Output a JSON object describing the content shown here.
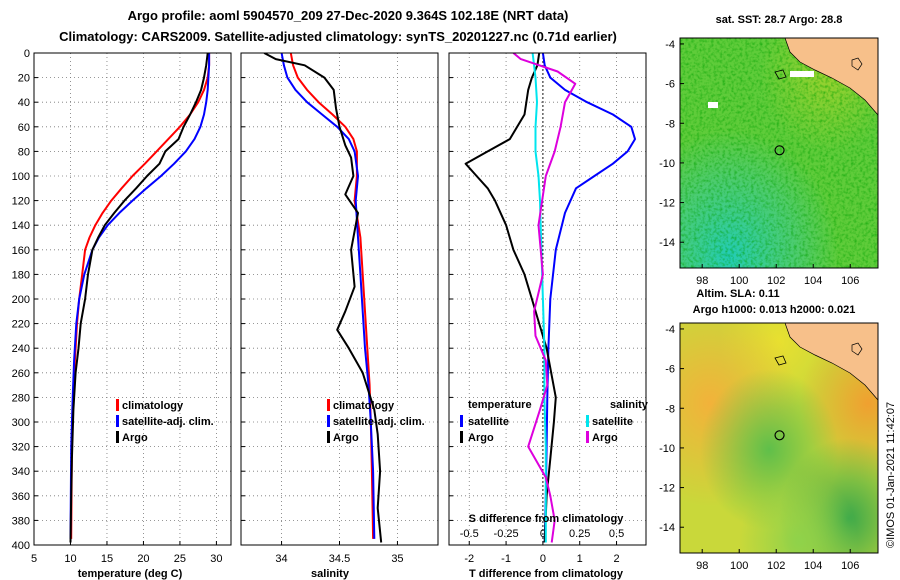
{
  "header": {
    "line1": "Argo profile: aoml 5904570_209 27-Dec-2020 9.364S 102.18E (NRT data)",
    "line2": "Climatology: CARS2009. Satellite-adjusted climatology: synTS_20201227.nc (0.71d earlier)"
  },
  "colors": {
    "climatology": "#ff0000",
    "satellite": "#0000ff",
    "argo": "#000000",
    "sat_s": "#00e5ee",
    "argo_s": "#dd00dd",
    "land": "#f7c08a"
  },
  "chart_data": [
    {
      "type": "line",
      "id": "temperature",
      "xlabel": "temperature (deg C)",
      "ylabel": "depth",
      "xlim": [
        5,
        32
      ],
      "ylim": [
        0,
        400
      ],
      "xticks": [
        "5",
        "10",
        "15",
        "20",
        "25",
        "30"
      ],
      "xtick_values": [
        5,
        10,
        15,
        20,
        25,
        30
      ],
      "yticks": [
        "0",
        "20",
        "40",
        "60",
        "80",
        "100",
        "120",
        "140",
        "160",
        "180",
        "200",
        "220",
        "240",
        "260",
        "280",
        "300",
        "320",
        "340",
        "360",
        "380",
        "400"
      ],
      "ytick_values": [
        0,
        20,
        40,
        60,
        80,
        100,
        120,
        140,
        160,
        180,
        200,
        220,
        240,
        260,
        280,
        300,
        320,
        340,
        360,
        380,
        400
      ],
      "legend": [
        "climatology",
        "satellite-adj. clim.",
        "Argo"
      ],
      "series": [
        {
          "name": "climatology",
          "color": "#ff0000",
          "x": [
            29,
            29,
            28.8,
            28.3,
            27.5,
            26.4,
            25,
            23.4,
            21.8,
            20.2,
            18.5,
            17,
            15.6,
            14.4,
            13.4,
            12.6,
            12,
            11.6,
            11.2,
            10.9,
            10.6,
            10.4,
            10.2,
            10.1
          ],
          "y": [
            0,
            10,
            20,
            30,
            40,
            50,
            60,
            70,
            80,
            90,
            100,
            110,
            120,
            130,
            140,
            150,
            160,
            180,
            200,
            220,
            250,
            280,
            320,
            395
          ]
        },
        {
          "name": "satellite-adj. clim.",
          "color": "#0000ff",
          "x": [
            29,
            29,
            28.9,
            28.8,
            28.6,
            28.3,
            27.8,
            27,
            25.8,
            24.2,
            22.4,
            20.4,
            18.5,
            16.7,
            15.1,
            13.9,
            13,
            11.9,
            11.2,
            10.8,
            10.5,
            10.3,
            10.1,
            10
          ],
          "y": [
            0,
            10,
            20,
            30,
            40,
            50,
            60,
            70,
            80,
            90,
            100,
            110,
            120,
            130,
            140,
            150,
            160,
            180,
            200,
            220,
            250,
            280,
            320,
            395
          ]
        },
        {
          "name": "Argo",
          "color": "#000000",
          "x": [
            28.8,
            28.6,
            28.3,
            27.9,
            27.2,
            26.4,
            25.5,
            24.8,
            23,
            22.2,
            20.5,
            19,
            17.4,
            16,
            14.7,
            13.8,
            13,
            12.4,
            12,
            11.4,
            11.1,
            10.7,
            10.4,
            10.2,
            10.1,
            10
          ],
          "y": [
            0,
            10,
            20,
            30,
            40,
            50,
            60,
            70,
            80,
            90,
            100,
            110,
            120,
            130,
            140,
            150,
            160,
            180,
            200,
            220,
            240,
            260,
            290,
            330,
            360,
            398
          ]
        }
      ]
    },
    {
      "type": "line",
      "id": "salinity",
      "xlabel": "salinity",
      "xlim": [
        33.65,
        35.35
      ],
      "ylim": [
        0,
        400
      ],
      "xticks": [
        "34",
        "34.5",
        "35"
      ],
      "xtick_values": [
        34,
        34.5,
        35
      ],
      "legend": [
        "climatology",
        "satellite-adj. clim.",
        "Argo"
      ],
      "series": [
        {
          "name": "climatology",
          "color": "#ff0000",
          "x": [
            34.08,
            34.1,
            34.14,
            34.22,
            34.32,
            34.44,
            34.55,
            34.62,
            34.65,
            34.65,
            34.63,
            34.68,
            34.7,
            34.72,
            34.74,
            34.76,
            34.77,
            34.78,
            34.79
          ],
          "y": [
            0,
            10,
            20,
            30,
            40,
            50,
            60,
            70,
            80,
            100,
            120,
            150,
            180,
            210,
            240,
            270,
            300,
            340,
            395
          ]
        },
        {
          "name": "satellite-adj. clim.",
          "color": "#0000ff",
          "x": [
            34.0,
            34.02,
            34.05,
            34.12,
            34.22,
            34.35,
            34.48,
            34.58,
            34.63,
            34.66,
            34.64,
            34.66,
            34.68,
            34.7,
            34.72,
            34.75,
            34.77,
            34.79,
            34.8
          ],
          "y": [
            0,
            10,
            20,
            30,
            40,
            50,
            60,
            70,
            80,
            100,
            120,
            150,
            180,
            210,
            240,
            270,
            300,
            340,
            395
          ]
        },
        {
          "name": "Argo",
          "color": "#000000",
          "x": [
            33.85,
            33.95,
            34.2,
            34.37,
            34.45,
            34.47,
            34.5,
            34.55,
            34.6,
            34.62,
            34.55,
            34.66,
            34.6,
            34.63,
            34.55,
            34.48,
            34.58,
            34.7,
            34.8,
            34.83,
            34.85,
            34.83,
            34.86
          ],
          "y": [
            0,
            5,
            10,
            20,
            30,
            45,
            60,
            75,
            85,
            100,
            115,
            130,
            160,
            190,
            210,
            225,
            240,
            260,
            290,
            310,
            340,
            370,
            398
          ]
        }
      ]
    },
    {
      "type": "line",
      "id": "differences",
      "xlabel": "T difference from climatology",
      "xlabel_top": "S difference from climatology",
      "xlim": [
        -2.55,
        2.8
      ],
      "ylim": [
        0,
        400
      ],
      "xticks": [
        "-2",
        "-1",
        "0",
        "1",
        "2"
      ],
      "xtick_values": [
        -2,
        -1,
        0,
        1,
        2
      ],
      "sticks": [
        "-0.5",
        "-0.25",
        "0",
        "0.25",
        "0.5"
      ],
      "stick_values": [
        -0.5,
        -0.25,
        0,
        0.25,
        0.5
      ],
      "legend_left_title": "temperature",
      "legend_right_title": "salinity",
      "legend_left": [
        "satellite",
        "Argo"
      ],
      "legend_right": [
        "satellite",
        "Argo"
      ],
      "series": [
        {
          "name": "T satellite",
          "color": "#0000ff",
          "units": "deg C",
          "x": [
            0,
            0.05,
            0.2,
            0.6,
            1.2,
            1.9,
            2.4,
            2.5,
            2.3,
            1.9,
            1.4,
            0.9,
            0.6,
            0.35,
            0.2,
            0.15,
            0.12,
            0.1,
            0.08,
            0.05
          ],
          "y": [
            0,
            10,
            20,
            30,
            40,
            50,
            60,
            70,
            80,
            90,
            100,
            110,
            130,
            160,
            200,
            240,
            280,
            320,
            360,
            398
          ]
        },
        {
          "name": "T Argo",
          "color": "#000000",
          "units": "deg C",
          "x": [
            -0.1,
            -0.15,
            -0.3,
            -0.4,
            -0.5,
            -0.9,
            -1.5,
            -2.1,
            -1.8,
            -1.5,
            -1.3,
            -1.0,
            -0.8,
            -0.5,
            -0.3,
            -0.1,
            0.1,
            0.35,
            0.3,
            0.2,
            0.1,
            0.05
          ],
          "y": [
            0,
            10,
            20,
            30,
            50,
            70,
            80,
            90,
            100,
            110,
            120,
            140,
            160,
            180,
            200,
            220,
            240,
            280,
            300,
            330,
            360,
            398
          ]
        },
        {
          "name": "S satellite",
          "color": "#00e5ee",
          "units": "psu",
          "x": [
            -0.07,
            -0.06,
            -0.05,
            -0.04,
            -0.05,
            -0.05,
            -0.03,
            -0.02,
            -0.01,
            0.0,
            0.01,
            0.01,
            0.02,
            0.02,
            0.02
          ],
          "y": [
            0,
            10,
            20,
            40,
            60,
            80,
            100,
            120,
            160,
            200,
            240,
            280,
            320,
            360,
            398
          ]
        },
        {
          "name": "S Argo",
          "color": "#dd00dd",
          "units": "psu",
          "x": [
            -0.2,
            -0.15,
            0.1,
            0.22,
            0.15,
            0.12,
            0.08,
            0.02,
            -0.03,
            0.0,
            -0.06,
            -0.05,
            0.02,
            0.03,
            -0.02,
            -0.1,
            0.02,
            0.05,
            0.08,
            0.06
          ],
          "y": [
            0,
            5,
            15,
            25,
            40,
            60,
            80,
            100,
            140,
            180,
            210,
            230,
            250,
            270,
            290,
            320,
            345,
            360,
            380,
            398
          ]
        }
      ]
    }
  ],
  "maps": {
    "sst": {
      "title": "sat. SST: 28.7 Argo: 28.8",
      "lon_ticks": [
        "98",
        "100",
        "102",
        "104",
        "106"
      ],
      "lon_values": [
        98,
        100,
        102,
        104,
        106
      ],
      "lat_ticks": [
        "-4",
        "-6",
        "-8",
        "-10",
        "-12",
        "-14"
      ],
      "lat_values": [
        -4,
        -6,
        -8,
        -10,
        -12,
        -14
      ],
      "lon_range": [
        96.8,
        107.5
      ],
      "lat_range": [
        -15.3,
        -3.7
      ],
      "argo_lon": 102.18,
      "argo_lat": -9.364
    },
    "sla": {
      "title1": "Altim. SLA: 0.11",
      "title2": "Argo h1000: 0.013 h2000: 0.021",
      "lon_ticks": [
        "98",
        "100",
        "102",
        "104",
        "106"
      ],
      "lon_values": [
        98,
        100,
        102,
        104,
        106
      ],
      "lat_ticks": [
        "-4",
        "-6",
        "-8",
        "-10",
        "-12",
        "-14"
      ],
      "lat_values": [
        -4,
        -6,
        -8,
        -10,
        -12,
        -14
      ],
      "lon_range": [
        96.8,
        107.5
      ],
      "lat_range": [
        -15.3,
        -3.7
      ],
      "argo_lon": 102.18,
      "argo_lat": -9.364
    }
  },
  "credit": "©IMOS 01-Jan-2021 11:42:07"
}
